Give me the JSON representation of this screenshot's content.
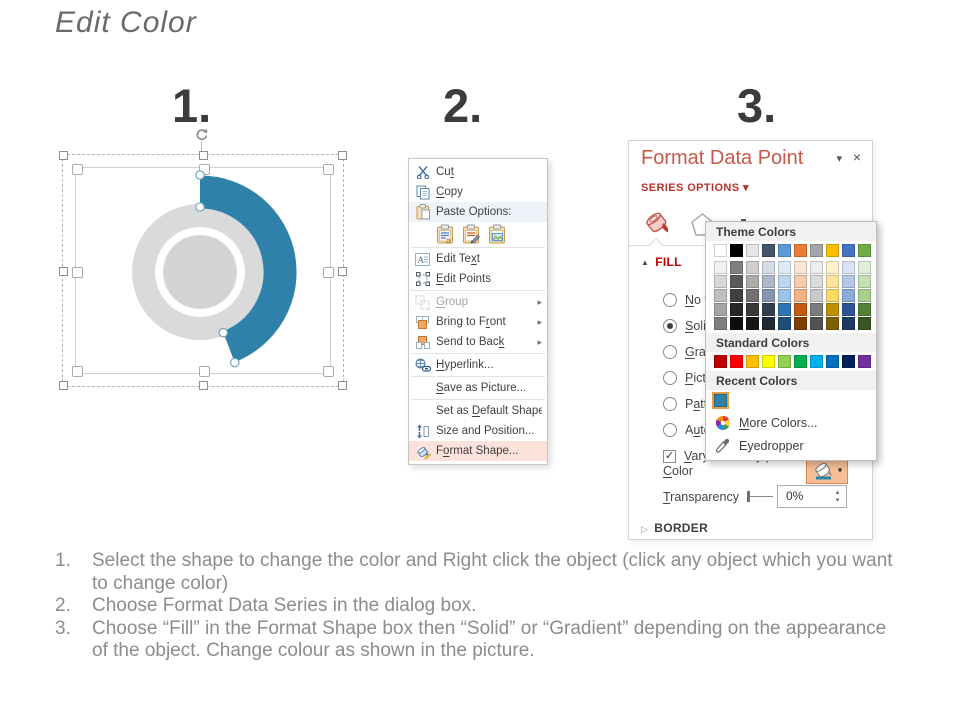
{
  "title": "Edit Color",
  "step_numbers": [
    "1.",
    "2.",
    "3."
  ],
  "colors": {
    "shape_accent": "#2E81A8",
    "donut_gray": "#DADADA",
    "donut_inner_gray": "#D4D4D4",
    "highlight_peach": "#FBE2DA",
    "panel_title_red": "#C8594A",
    "section_red": "#C00000"
  },
  "context_menu": {
    "items": [
      {
        "label": "Cut",
        "accel_index": 2,
        "icon": "scissors-icon"
      },
      {
        "label": "Copy",
        "accel_index": 0,
        "icon": "copy-icon"
      },
      {
        "label": "Paste Options:",
        "icon": "paste-icon",
        "header": true
      },
      {
        "paste_icons": [
          "paste-destination-theme-icon",
          "paste-keep-source-formatting-icon",
          "paste-as-picture-icon"
        ]
      },
      {
        "label": "Edit Text",
        "accel_index": 7,
        "icon": "edit-text-icon",
        "sep_before": true
      },
      {
        "label": "Edit Points",
        "accel_index": 0,
        "icon": "edit-points-icon"
      },
      {
        "label": "Group",
        "accel_index": 0,
        "icon": "group-icon",
        "disabled": true,
        "submenu": true,
        "sep_before": true
      },
      {
        "label": "Bring to Front",
        "accel_index": 10,
        "icon": "bring-to-front-icon",
        "submenu": true
      },
      {
        "label": "Send to Back",
        "accel_index": 11,
        "icon": "send-to-back-icon",
        "submenu": true
      },
      {
        "label": "Hyperlink...",
        "accel_index": 0,
        "icon": "hyperlink-icon",
        "sep_before": true
      },
      {
        "label": "Save as Picture...",
        "accel_index": 0,
        "sep_before": true
      },
      {
        "label": "Set as Default Shape",
        "accel_index": 7,
        "sep_before": true
      },
      {
        "label": "Size and Position...",
        "icon": "size-position-icon"
      },
      {
        "label": "Format Shape...",
        "accel_index": 1,
        "icon": "format-shape-icon",
        "highlight": true
      }
    ]
  },
  "format_panel": {
    "title": "Format Data Point",
    "section": "SERIES OPTIONS",
    "fill_header": "FILL",
    "border_header": "BORDER",
    "options": [
      {
        "label": "No fill",
        "accel_index": 0,
        "type": "radio",
        "checked": false
      },
      {
        "label": "Solid fill",
        "accel_index": 0,
        "type": "radio",
        "checked": true
      },
      {
        "label": "Gradient fill",
        "accel_index": 0,
        "type": "radio",
        "checked": false
      },
      {
        "label": "Picture or texture fill",
        "accel_index": 0,
        "type": "radio",
        "checked": false
      },
      {
        "label": "Pattern fill",
        "accel_index": 1,
        "type": "radio",
        "checked": false
      },
      {
        "label": "Automatic",
        "accel_index": 1,
        "type": "radio",
        "checked": false
      },
      {
        "label": "Vary colors by point",
        "accel_index": 0,
        "type": "checkbox",
        "checked": true
      }
    ],
    "color_label": "Color",
    "transparency_label": "Transparency",
    "transparency_value": "0%"
  },
  "color_popup": {
    "theme_header": "Theme Colors",
    "standard_header": "Standard Colors",
    "recent_header": "Recent Colors",
    "more_colors": "More Colors...",
    "eyedropper": "Eyedropper",
    "theme_colors": [
      "#FFFFFF",
      "#000000",
      "#E7E6E6",
      "#44546A",
      "#5B9BD5",
      "#ED7D31",
      "#A5A5A5",
      "#FFC000",
      "#4472C4",
      "#70AD47"
    ],
    "theme_variants": [
      [
        "#F2F2F2",
        "#7F7F7F",
        "#D0CECE",
        "#D6DCE4",
        "#DEEBF6",
        "#FBE5D5",
        "#EDEDED",
        "#FFF2CC",
        "#DAE3F3",
        "#E2EFD9"
      ],
      [
        "#D8D8D8",
        "#595959",
        "#AEABAB",
        "#ACB9CA",
        "#BDD7EE",
        "#F7CBAC",
        "#DBDBDB",
        "#FFE599",
        "#B4C7E7",
        "#C5E0B3"
      ],
      [
        "#BFBFBF",
        "#404040",
        "#757070",
        "#8496B0",
        "#9DC3E6",
        "#F4B183",
        "#C9C9C9",
        "#FFD965",
        "#8EAADB",
        "#A8D08D"
      ],
      [
        "#A5A5A5",
        "#262626",
        "#3A3838",
        "#333F50",
        "#2E75B5",
        "#C55A11",
        "#7B7B7B",
        "#BF9000",
        "#2F5496",
        "#538135"
      ],
      [
        "#7F7F7F",
        "#0D0D0D",
        "#171616",
        "#222A35",
        "#1F4E79",
        "#833C00",
        "#525252",
        "#7F6000",
        "#1F3864",
        "#375623"
      ]
    ],
    "standard_colors": [
      "#C00000",
      "#FF0000",
      "#FFC000",
      "#FFFF00",
      "#92D050",
      "#00B050",
      "#00B0F0",
      "#0070C0",
      "#002060",
      "#7030A0"
    ],
    "recent_colors": [
      "#2E81A8"
    ]
  },
  "instructions": [
    {
      "num": "1.",
      "text": "Select the shape to change the color and Right click the object (click any object which you want to change color)"
    },
    {
      "num": "2.",
      "text": "Choose Format Data Series in the dialog box."
    },
    {
      "num": "3.",
      "text": "Choose “Fill” in the Format Shape box then “Solid” or “Gradient” depending on the appearance of the object. Change colour as shown in the picture."
    }
  ]
}
